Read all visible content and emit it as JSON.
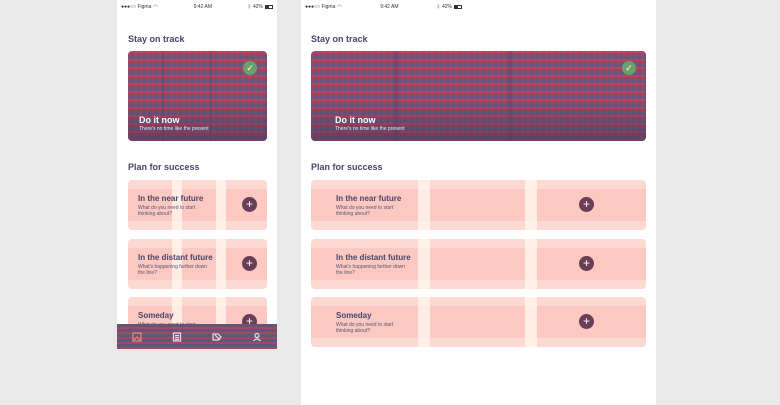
{
  "statusbar": {
    "carrier": "●●●○○ Figma",
    "time": "9:42 AM",
    "battery": "42%"
  },
  "sections": {
    "stay_on_track": "Stay on track",
    "plan_for_success": "Plan for success"
  },
  "hero": {
    "title": "Do it now",
    "subtitle": "There's no time like the present",
    "check_glyph": "✓"
  },
  "cards": [
    {
      "title": "In the near future",
      "subtitle": "What do you need to start thinking about?"
    },
    {
      "title": "In the distant future",
      "subtitle": "What's happening further down the line?"
    },
    {
      "title": "Someday",
      "subtitle": "What do you need to start thinking about?"
    }
  ],
  "plus_glyph": "+",
  "tabbar": {
    "tabs": [
      {
        "icon": "home-icon",
        "active": true
      },
      {
        "icon": "list-icon",
        "active": false
      },
      {
        "icon": "tag-icon",
        "active": false
      },
      {
        "icon": "user-icon",
        "active": false
      }
    ]
  },
  "colors": {
    "heading": "#4a4566",
    "card": "#fcd9d2",
    "plus": "#6a3e55",
    "check": "#6aa16a"
  }
}
